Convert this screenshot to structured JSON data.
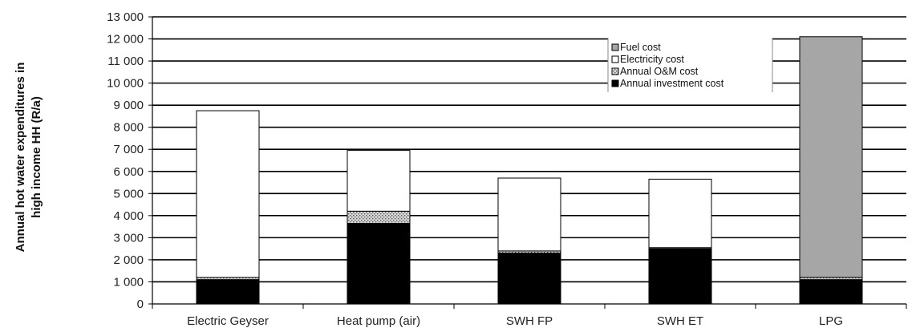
{
  "chart_data": {
    "type": "bar",
    "stacked": true,
    "title": "",
    "xlabel": "",
    "ylabel_line1": "Annual hot water expenditures in",
    "ylabel_line2": "high income HH (R/a)",
    "ylim": [
      0,
      13000
    ],
    "y_ticks": [
      0,
      1000,
      2000,
      3000,
      4000,
      5000,
      6000,
      7000,
      8000,
      9000,
      10000,
      11000,
      12000,
      13000
    ],
    "y_tick_labels": [
      "0",
      "1 000",
      "2 000",
      "3 000",
      "4 000",
      "5 000",
      "6 000",
      "7 000",
      "8 000",
      "9 000",
      "10 000",
      "11 000",
      "12 000",
      "13 000"
    ],
    "categories": [
      "Electric Geyser",
      "Heat pump (air)",
      "SWH FP",
      "SWH ET",
      "LPG"
    ],
    "series": [
      {
        "name": "Annual investment cost",
        "color": "#000000",
        "pattern": "solid",
        "values": [
          1100,
          3650,
          2300,
          2500,
          1100
        ]
      },
      {
        "name": "Annual O&M cost",
        "color": "#b8b8b8",
        "pattern": "dots",
        "values": [
          100,
          550,
          100,
          50,
          100
        ]
      },
      {
        "name": "Electricity cost",
        "color": "#ffffff",
        "pattern": "solid",
        "values": [
          7550,
          2750,
          3300,
          3100,
          0
        ]
      },
      {
        "name": "Fuel cost",
        "color": "#a6a6a6",
        "pattern": "solid",
        "values": [
          0,
          0,
          0,
          0,
          10900
        ]
      }
    ],
    "legend_order": [
      "Fuel cost",
      "Electricity cost",
      "Annual O&M cost",
      "Annual investment cost"
    ],
    "legend_position": "top-right",
    "grid": true
  }
}
